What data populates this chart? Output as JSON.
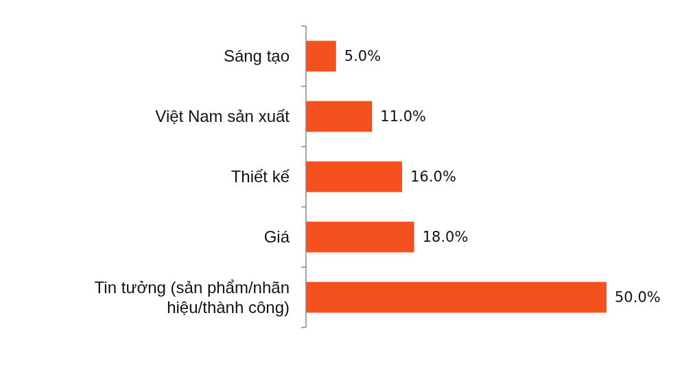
{
  "chart_data": {
    "type": "bar",
    "orientation": "horizontal",
    "categories": [
      "Sáng tạo",
      "Việt Nam sản xuất",
      "Thiết kế",
      "Giá",
      "Tin tưởng (sản phẩm/nhãn hiệu/thành công)"
    ],
    "values": [
      5,
      11,
      16,
      18,
      50
    ],
    "value_labels": [
      "5.0%",
      "11.0%",
      "16.0%",
      "18.0%",
      "50.0%"
    ],
    "color": "#f4511e"
  }
}
